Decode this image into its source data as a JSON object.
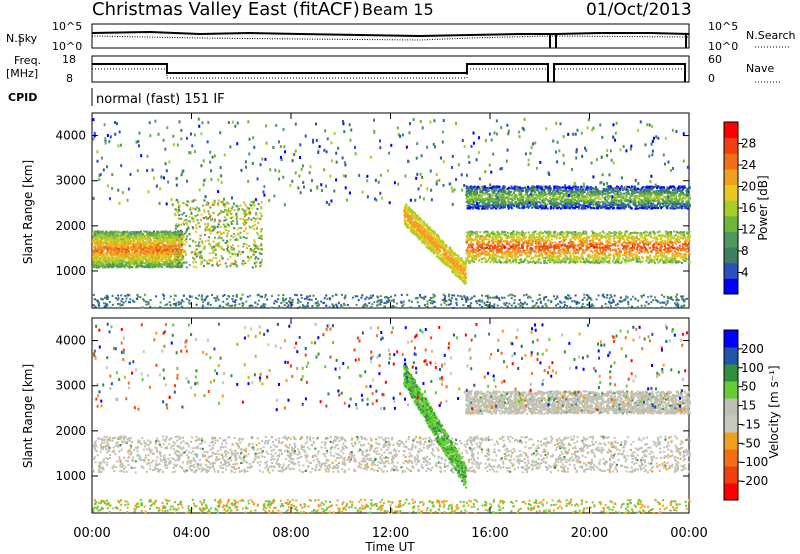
{
  "header": {
    "station": "Christmas Valley East (fitACF)",
    "beam": "Beam 15",
    "date": "01/Oct/2013"
  },
  "noise_panel": {
    "left_label": "N.Sky",
    "right_label": "N.Search",
    "left_ticks": [
      "10^5",
      "10^0"
    ],
    "right_ticks": [
      "10^5",
      "10^0"
    ]
  },
  "freq_panel": {
    "left_label_1": "Freq.",
    "left_label_2": "[MHz]",
    "left_ticks": [
      "18",
      "8"
    ],
    "right_label": "Nave",
    "right_ticks": [
      "60",
      "0"
    ]
  },
  "cpid": {
    "label": "CPID",
    "value": "normal (fast) 151 IF"
  },
  "colors": {
    "power_scale": [
      "#0000ff",
      "#2a52be",
      "#3a7f62",
      "#4e9a5c",
      "#6fb53c",
      "#a8cd2a",
      "#e8c820",
      "#f0a020",
      "#f07018",
      "#f04010",
      "#ff0000"
    ],
    "velocity_scale": [
      "#0000ff",
      "#2255aa",
      "#2f8f3f",
      "#66cc33",
      "#bfbfb3",
      "#c8c8bb",
      "#f0a020",
      "#f07018",
      "#f04010",
      "#ff0000"
    ],
    "ground_scatter": "#c0c0b4"
  },
  "chart_data": [
    {
      "type": "heatmap",
      "panel": "power",
      "ylabel": "Slant Range [km]",
      "ylim": [
        180,
        4500
      ],
      "xlim_hours": [
        0,
        24
      ],
      "yticks": [
        "1000",
        "2000",
        "3000",
        "4000"
      ],
      "colorbar": {
        "label": "Power [dB]",
        "ticks": [
          "4",
          "8",
          "12",
          "16",
          "20",
          "24",
          "28"
        ],
        "range": [
          0,
          32
        ]
      },
      "features": [
        {
          "name": "main band",
          "start_hour": 0.0,
          "end_hour": 3.6,
          "range_km": [
            1100,
            1900
          ],
          "level_db": 26
        },
        {
          "name": "descending track",
          "start_hour": 12.5,
          "end_hour": 15.0,
          "range_km": [
            950,
            2300
          ],
          "level_db": 24
        },
        {
          "name": "steady band",
          "start_hour": 15.0,
          "end_hour": 24.0,
          "range_km": [
            1200,
            1900
          ],
          "level_db": 28
        },
        {
          "name": "upper band",
          "start_hour": 15.0,
          "end_hour": 24.0,
          "range_km": [
            2400,
            2900
          ],
          "level_db": 16
        }
      ]
    },
    {
      "type": "heatmap",
      "panel": "velocity",
      "ylabel": "Slant Range [km]",
      "xlabel": "Time UT",
      "ylim": [
        180,
        4500
      ],
      "xlim_hours": [
        0,
        24
      ],
      "yticks": [
        "1000",
        "2000",
        "3000",
        "4000"
      ],
      "xticks": [
        "00:00",
        "04:00",
        "08:00",
        "12:00",
        "16:00",
        "20:00",
        "00:00"
      ],
      "colorbar": {
        "label": "Velocity [m s⁻¹]",
        "ticks": [
          "200",
          "100",
          "50",
          "15",
          "-15",
          "-50",
          "-100",
          "-200"
        ]
      },
      "features": [
        {
          "name": "ground scatter band",
          "start_hour": 0.0,
          "end_hour": 24.0,
          "range_km": [
            1100,
            1900
          ],
          "velocity_ms": 0
        },
        {
          "name": "upper ground scatter",
          "start_hour": 15.0,
          "end_hour": 24.0,
          "range_km": [
            2400,
            2900
          ],
          "velocity_ms": 0
        },
        {
          "name": "green streaks",
          "start_hour": 12.5,
          "end_hour": 15.0,
          "range_km": [
            1000,
            3300
          ],
          "velocity_ms": 60
        }
      ]
    }
  ],
  "bottom_axis": {
    "xlabel": "Time UT"
  }
}
